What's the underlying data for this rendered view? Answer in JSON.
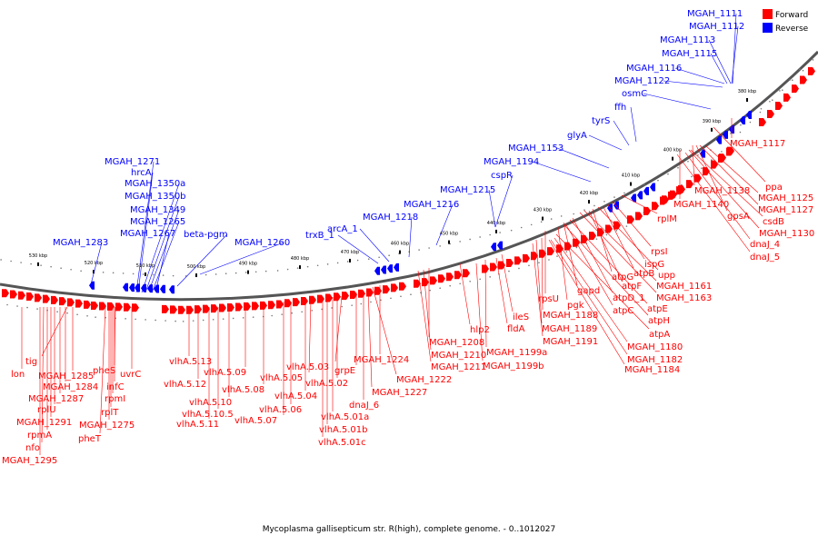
{
  "caption": "Mycoplasma gallisepticum str. R(high), complete genome. - 0..1012027",
  "legend": {
    "forward": {
      "label": "Forward",
      "color": "#ff0000"
    },
    "reverse": {
      "label": "Reverse",
      "color": "#0000ff"
    }
  },
  "ticks": [
    "530 kbp",
    "520 kbp",
    "510 kbp",
    "500 kbp",
    "490 kbp",
    "480 kbp",
    "470 kbp",
    "460 kbp",
    "450 kbp",
    "440 kbp",
    "430 kbp",
    "420 kbp",
    "410 kbp",
    "400 kbp",
    "390 kbp",
    "380 kbp"
  ],
  "reverse_genes": [
    "MGAH_1111",
    "MGAH_1112",
    "MGAH_1113",
    "MGAH_1115",
    "MGAH_1116",
    "MGAH_1122",
    "osmC",
    "ffh",
    "tyrS",
    "glyA",
    "MGAH_1153",
    "MGAH_1194",
    "cspR",
    "MGAH_1215",
    "MGAH_1216",
    "MGAH_1218",
    "arcA_1",
    "trxB_1",
    "MGAH_1260",
    "beta-pgm",
    "MGAH_1267",
    "MGAH_1265",
    "MGAH_1349",
    "MGAH_1350b",
    "MGAH_1350a",
    "hrcA",
    "MGAH_1271",
    "MGAH_1283"
  ],
  "forward_genes": [
    "MGAH_1117",
    "ppa",
    "MGAH_1138",
    "MGAH_1125",
    "MGAH_1140",
    "MGAH_1127",
    "gpsA",
    "csdB",
    "MGAH_1130",
    "dnaJ_4",
    "dnaJ_5",
    "rplM",
    "rpsI",
    "ispG",
    "atpB",
    "upp",
    "atpG",
    "atpF",
    "MGAH_1161",
    "MGAH_1163",
    "gapd",
    "atpD_1",
    "atpE",
    "rpsU",
    "pgk",
    "atpC",
    "atpH",
    "MGAH_1188",
    "MGAH_1189",
    "atpA",
    "MGAH_1191",
    "MGAH_1180",
    "MGAH_1182",
    "MGAH_1184",
    "ileS",
    "fldA",
    "hlp2",
    "MGAH_1199a",
    "MGAH_1199b",
    "MGAH_1208",
    "MGAH_1210",
    "MGAH_1211",
    "MGAH_1224",
    "MGAH_1222",
    "MGAH_1227",
    "dnaJ_6",
    "grpE",
    "vlhA.5.03",
    "vlhA.5.02",
    "vlhA.5.01a",
    "vlhA.5.01b",
    "vlhA.5.01c",
    "vlhA.5.05",
    "vlhA.5.04",
    "vlhA.5.06",
    "vlhA.5.07",
    "vlhA.5.08",
    "vlhA.5.09",
    "vlhA.5.10",
    "vlhA.5.10.5",
    "vlhA.5.11",
    "vlhA.5.12",
    "vlhA.5.13",
    "uvrC",
    "pheS",
    "infC",
    "rpmI",
    "rplT",
    "MGAH_1275",
    "pheT",
    "tig",
    "lon",
    "MGAH_1285",
    "MGAH_1284",
    "MGAH_1287",
    "rplU",
    "MGAH_1291",
    "rpmA",
    "nfo",
    "MGAH_1295"
  ]
}
